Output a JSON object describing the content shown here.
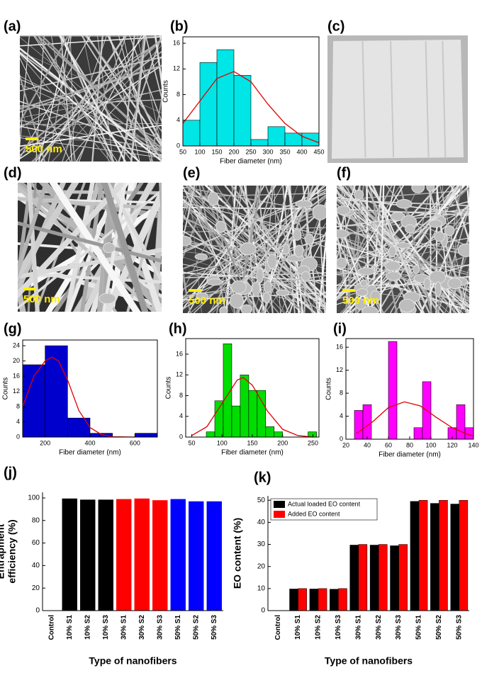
{
  "images": [
    {
      "label": "(a)",
      "scale_bar": "500 nm"
    },
    {
      "label": "(c)"
    },
    {
      "label": "(d)",
      "scale_bar": "500 nm"
    },
    {
      "label": "(e)",
      "scale_bar": "500 nm"
    },
    {
      "label": "(f)",
      "scale_bar": "500 nm"
    }
  ],
  "chart_data": [
    {
      "type": "histogram",
      "panel_label": "(b)",
      "xlabel": "Fiber diameter (nm)",
      "ylabel": "Counts",
      "color": "#00e5e5",
      "bins": [
        50,
        100,
        150,
        200,
        250,
        300,
        350,
        400,
        450
      ],
      "counts": [
        4,
        13,
        15,
        11,
        1,
        3,
        2,
        2
      ],
      "xlim": [
        50,
        450
      ],
      "xticks": [
        50,
        100,
        150,
        200,
        250,
        300,
        350,
        400,
        450
      ],
      "ylim": [
        0,
        17
      ],
      "yticks": [
        0,
        4,
        8,
        12,
        16
      ],
      "fit": {
        "color": "#e00000",
        "x": [
          50,
          100,
          150,
          200,
          250,
          300,
          350,
          400,
          450
        ],
        "values": [
          3.5,
          7,
          10.5,
          11.6,
          10,
          6.5,
          3.5,
          1.5,
          0.5
        ]
      }
    },
    {
      "type": "histogram",
      "panel_label": "(g)",
      "xlabel": "Fiber diameter (nm)",
      "ylabel": "Counts",
      "color": "#0000cc",
      "bins": [
        100,
        200,
        300,
        400,
        500,
        600,
        700
      ],
      "counts": [
        19,
        24,
        5,
        1,
        0,
        1
      ],
      "xlim": [
        100,
        700
      ],
      "xticks": [
        200,
        400,
        600
      ],
      "ylim": [
        0,
        25.5
      ],
      "yticks": [
        0,
        4,
        8,
        12,
        16,
        20,
        24
      ],
      "fit": {
        "color": "#e00000",
        "x": [
          100,
          150,
          200,
          230,
          260,
          300,
          350,
          400,
          450,
          500,
          600
        ],
        "values": [
          8,
          16,
          20,
          21,
          20,
          15,
          7,
          2.5,
          0.7,
          0.1,
          0
        ]
      }
    },
    {
      "type": "histogram",
      "panel_label": "(h)",
      "xlabel": "Fiber diameter (nm)",
      "ylabel": "Counts",
      "color": "#00dd00",
      "bins": [
        74,
        88,
        102,
        116,
        130,
        144,
        158,
        172,
        186,
        200,
        214,
        228,
        242,
        256
      ],
      "counts": [
        1,
        7,
        18,
        6,
        12,
        9,
        9,
        2,
        1,
        0,
        0,
        0,
        1
      ],
      "xlim": [
        40,
        260
      ],
      "xticks": [
        50,
        100,
        150,
        200,
        250
      ],
      "ylim": [
        0,
        19
      ],
      "yticks": [
        0,
        4,
        8,
        12,
        16
      ],
      "fit": {
        "color": "#e00000",
        "x": [
          50,
          75,
          100,
          125,
          135,
          150,
          175,
          200,
          225,
          250
        ],
        "values": [
          0.3,
          2,
          6.5,
          11,
          11.5,
          10,
          5,
          1.5,
          0.3,
          0
        ]
      }
    },
    {
      "type": "histogram",
      "panel_label": "(i)",
      "xlabel": "Fiber diameter (nm)",
      "ylabel": "Counts",
      "color": "#ff00ff",
      "bins": [
        28,
        36,
        44,
        52,
        60,
        68,
        76,
        84,
        92,
        100,
        108,
        116,
        124,
        132,
        140
      ],
      "counts": [
        5,
        6,
        0,
        0,
        17,
        0,
        0,
        2,
        10,
        0,
        0,
        2,
        6,
        2
      ],
      "xlim": [
        20,
        140
      ],
      "xticks": [
        20,
        40,
        60,
        80,
        100,
        120,
        140
      ],
      "ylim": [
        0,
        17.5
      ],
      "yticks": [
        0,
        4,
        8,
        12,
        16
      ],
      "fit": {
        "color": "#e00000",
        "x": [
          30,
          45,
          60,
          75,
          90,
          105,
          120,
          135,
          140
        ],
        "values": [
          1,
          3,
          5.5,
          6.5,
          5.8,
          3.8,
          2,
          0.8,
          0.6
        ]
      }
    },
    {
      "type": "bar",
      "panel_label": "(j)",
      "xlabel": "Type of nanofibers",
      "ylabel": [
        "Entrapment",
        "efficiency (%)"
      ],
      "categories": [
        "Control",
        "10% S1",
        "10% S2",
        "10% S3",
        "30% S1",
        "30% S2",
        "30% S3",
        "50% S1",
        "50% S2",
        "50% S3"
      ],
      "values": [
        0,
        99.5,
        98.5,
        98.5,
        99,
        99.5,
        98,
        99,
        97,
        97
      ],
      "colors": [
        "#000000",
        "#000000",
        "#000000",
        "#000000",
        "#ff0000",
        "#ff0000",
        "#ff0000",
        "#0000ff",
        "#0000ff",
        "#0000ff"
      ],
      "ylim": [
        0,
        105
      ],
      "yticks": [
        0,
        20,
        40,
        60,
        80,
        100
      ]
    },
    {
      "type": "bar",
      "panel_label": "(k)",
      "xlabel": "Type of nanofibers",
      "ylabel": [
        "EO content (%)"
      ],
      "categories": [
        "Control",
        "10% S1",
        "10% S2",
        "10% S3",
        "30% S1",
        "30% S2",
        "30% S3",
        "50% S1",
        "50% S2",
        "50% S3"
      ],
      "series": [
        {
          "name": "Actual  loaded EO content",
          "color": "#000000",
          "values": [
            0,
            9.8,
            9.8,
            9.7,
            29.7,
            29.7,
            29.4,
            49.5,
            48.6,
            48.3
          ]
        },
        {
          "name": "Added EO content",
          "color": "#ff0000",
          "values": [
            0,
            10,
            10,
            10,
            30,
            30,
            30,
            50,
            50,
            50
          ]
        }
      ],
      "legend": "upper left",
      "ylim": [
        0,
        52
      ],
      "yticks": [
        0,
        10,
        20,
        30,
        40,
        50
      ]
    }
  ]
}
